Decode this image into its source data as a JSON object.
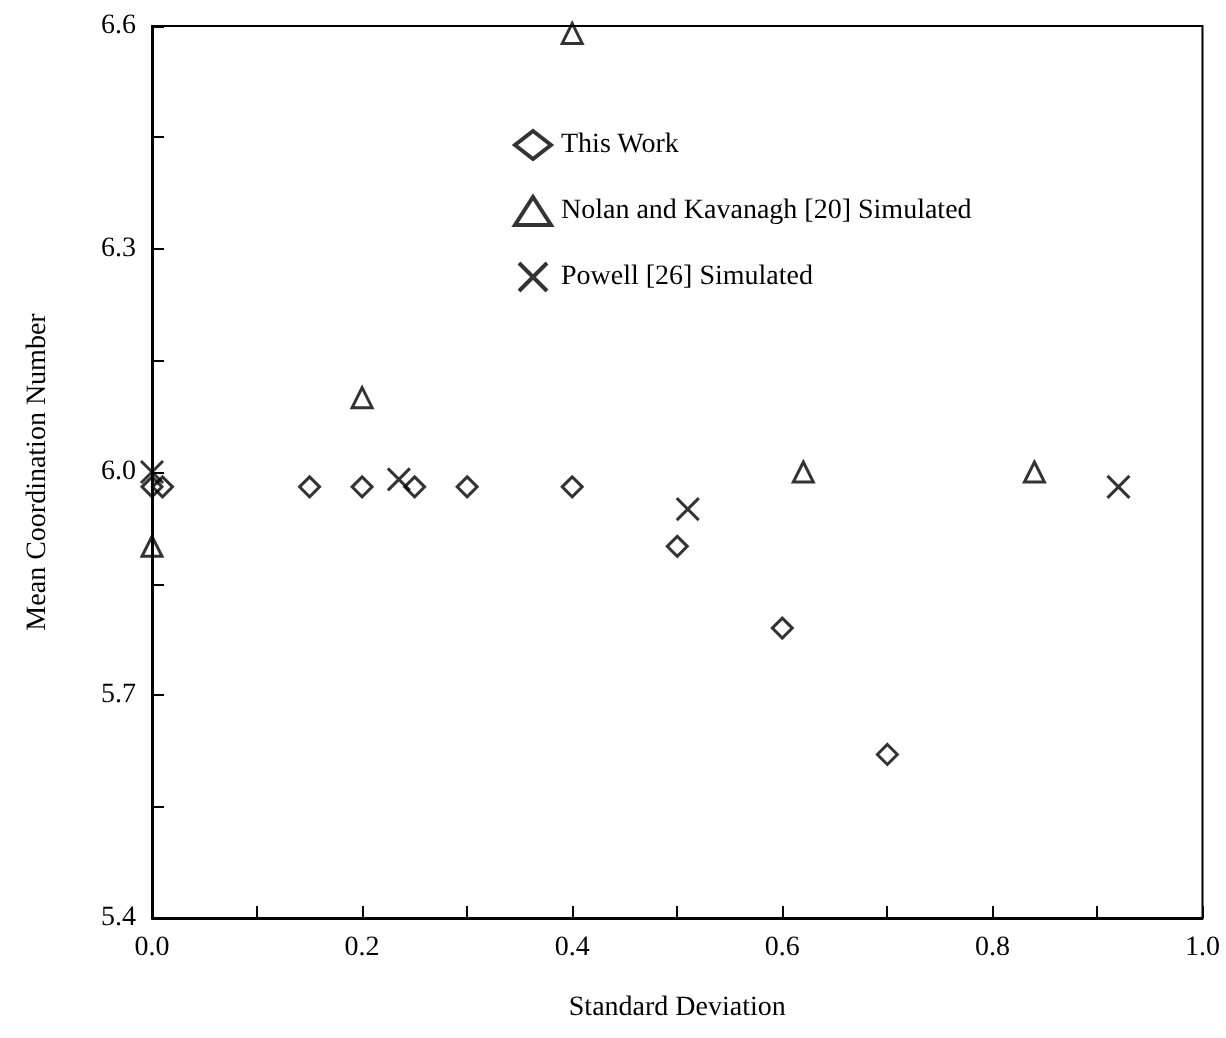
{
  "chart_data": {
    "type": "scatter",
    "xlabel": "Standard Deviation",
    "ylabel": "Mean Coordination Number",
    "xlim": [
      0,
      1
    ],
    "ylim": [
      5.4,
      6.6
    ],
    "xticks": [
      {
        "value": 0,
        "label": "0.0"
      },
      {
        "value": 0.1,
        "label": null
      },
      0.2,
      {
        "value": 0.3,
        "label": null
      },
      0.4,
      {
        "value": 0.5,
        "label": null
      },
      0.6,
      {
        "value": 0.7,
        "label": null
      },
      0.8,
      {
        "value": 0.9,
        "label": null
      },
      {
        "value": 1,
        "label": "1.0"
      }
    ],
    "yticks": [
      5.4,
      {
        "value": 5.55,
        "label": null
      },
      5.7,
      {
        "value": 5.85,
        "label": null
      },
      {
        "value": 6,
        "label": "6.0"
      },
      {
        "value": 6.15,
        "label": null
      },
      6.3,
      {
        "value": 6.45,
        "label": null
      },
      6.6
    ],
    "grid": false,
    "legend": "top",
    "series": [
      {
        "name": "This Work",
        "color": "#000000",
        "marker": "diamond",
        "x": [
          0.0,
          0.01,
          0.15,
          0.2,
          0.25,
          0.3,
          0.4,
          0.5,
          0.6,
          0.7
        ],
        "values": [
          5.98,
          5.98,
          5.98,
          5.98,
          5.98,
          5.98,
          5.98,
          5.9,
          5.79,
          5.62
        ]
      },
      {
        "name": "Nolan and Kavanagh [20] Simulated",
        "color": "#000000",
        "marker": "triangle",
        "x": [
          0.0,
          0.2,
          0.4,
          0.62,
          0.84
        ],
        "values": [
          5.9,
          6.1,
          6.59,
          6.0,
          6.0
        ]
      },
      {
        "name": "Powell [26] Simulated",
        "color": "#000000",
        "marker": "cross",
        "x": [
          0.0,
          0.235,
          0.51,
          0.92
        ],
        "values": [
          6.0,
          5.99,
          5.95,
          5.98
        ]
      }
    ]
  }
}
